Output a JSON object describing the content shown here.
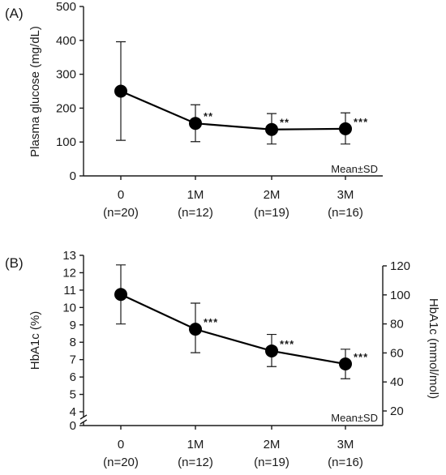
{
  "chart_data": [
    {
      "type": "line",
      "panel_label": "(A)",
      "ylabel": "Plasma glucose  (mg/dL)",
      "ylim": [
        0,
        500
      ],
      "yticks": [
        0,
        100,
        200,
        300,
        400,
        500
      ],
      "categories": [
        "0",
        "1M",
        "2M",
        "3M"
      ],
      "sublabels": [
        "(n=20)",
        "(n=12)",
        "(n=19)",
        "(n=16)"
      ],
      "values": [
        250,
        155,
        137,
        139
      ],
      "err_lower": [
        105,
        101,
        94,
        94
      ],
      "err_upper": [
        396,
        210,
        184,
        186
      ],
      "significance": [
        "",
        "**",
        "**",
        "***"
      ],
      "annotation": "Mean±SD"
    },
    {
      "type": "line",
      "panel_label": "(B)",
      "ylabel": "HbA1c (%)",
      "ylabel_right": "HbA1c (mmol/mol)",
      "ylim": [
        4,
        13
      ],
      "yticks": [
        4,
        5,
        6,
        7,
        8,
        9,
        10,
        11,
        12,
        13
      ],
      "ybottom_label": "0",
      "yticks_right": [
        20,
        40,
        60,
        80,
        100,
        120
      ],
      "categories": [
        "0",
        "1M",
        "2M",
        "3M"
      ],
      "sublabels": [
        "(n=20)",
        "(n=12)",
        "(n=19)",
        "(n=16)"
      ],
      "values": [
        10.75,
        8.75,
        7.5,
        6.75
      ],
      "err_lower": [
        9.05,
        7.4,
        6.6,
        5.9
      ],
      "err_upper": [
        12.45,
        10.25,
        8.45,
        7.6
      ],
      "significance": [
        "",
        "***",
        "***",
        "***"
      ],
      "annotation": "Mean±SD"
    }
  ]
}
